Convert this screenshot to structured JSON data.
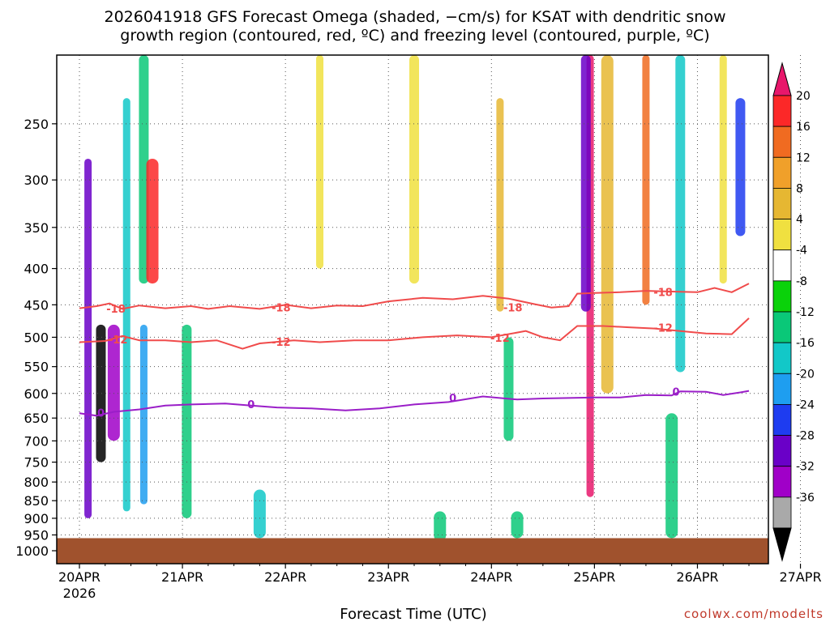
{
  "title": {
    "line1": "2026041918 GFS Forecast Omega (shaded, −cm/s) for KSAT with dendritic snow",
    "line2": "growth region (contoured, red, ºC) and freezing level (contoured, purple, ºC)"
  },
  "credit": "coolwx.com/modelts",
  "chart_data": {
    "type": "heatmap",
    "xlabel": "Forecast Time (UTC)",
    "ylabel": "",
    "x_ticks": [
      "20APR",
      "21APR",
      "22APR",
      "23APR",
      "24APR",
      "25APR",
      "26APR",
      "27APR"
    ],
    "x_sub_label": "2026",
    "x_range_hours": [
      0,
      156
    ],
    "y_scale": "log-pressure",
    "y_ticks": [
      250,
      300,
      350,
      400,
      450,
      500,
      550,
      600,
      650,
      700,
      750,
      800,
      850,
      900,
      950,
      1000
    ],
    "y_range_hPa": [
      200,
      1000
    ],
    "grid": true,
    "colorbar": {
      "unit": "-cm/s",
      "ticks": [
        "20",
        "16",
        "12",
        "8",
        "4",
        "-4",
        "-8",
        "-12",
        "-16",
        "-20",
        "-24",
        "-28",
        "-32",
        "-36"
      ],
      "colors": [
        "#e8176b",
        "#fc2828",
        "#f06b21",
        "#f0a02a",
        "#e6b732",
        "#f0e040",
        "#ffffff",
        "#0ad20a",
        "#0ac878",
        "#12c8c8",
        "#1e9ef0",
        "#1e3cf0",
        "#6a00c8",
        "#a000c8",
        "#a9a9a9",
        "#000000"
      ]
    },
    "series": [
      {
        "name": "-18",
        "color": "#f04b4b",
        "points": [
          [
            0,
            455
          ],
          [
            4,
            452
          ],
          [
            7,
            448
          ],
          [
            10,
            456
          ],
          [
            14,
            451
          ],
          [
            20,
            455
          ],
          [
            26,
            452
          ],
          [
            30,
            456
          ],
          [
            35,
            452
          ],
          [
            42,
            456
          ],
          [
            48,
            450
          ],
          [
            54,
            455
          ],
          [
            60,
            451
          ],
          [
            66,
            452
          ],
          [
            72,
            445
          ],
          [
            80,
            440
          ],
          [
            87,
            442
          ],
          [
            94,
            437
          ],
          [
            100,
            441
          ],
          [
            106,
            449
          ],
          [
            110,
            454
          ],
          [
            114,
            452
          ],
          [
            116,
            434
          ],
          [
            120,
            433
          ],
          [
            126,
            432
          ],
          [
            132,
            430
          ],
          [
            138,
            431
          ],
          [
            144,
            432
          ],
          [
            148,
            426
          ],
          [
            152,
            432
          ],
          [
            156,
            420
          ]
        ]
      },
      {
        "name": "-12",
        "color": "#f04b4b",
        "points": [
          [
            0,
            508
          ],
          [
            6,
            506
          ],
          [
            10,
            498
          ],
          [
            14,
            505
          ],
          [
            20,
            505
          ],
          [
            26,
            508
          ],
          [
            32,
            505
          ],
          [
            38,
            519
          ],
          [
            42,
            510
          ],
          [
            50,
            505
          ],
          [
            56,
            508
          ],
          [
            64,
            505
          ],
          [
            72,
            505
          ],
          [
            80,
            500
          ],
          [
            88,
            497
          ],
          [
            96,
            500
          ],
          [
            104,
            490
          ],
          [
            108,
            500
          ],
          [
            112,
            505
          ],
          [
            116,
            482
          ],
          [
            122,
            482
          ],
          [
            128,
            484
          ],
          [
            134,
            486
          ],
          [
            140,
            490
          ],
          [
            146,
            494
          ],
          [
            152,
            495
          ],
          [
            156,
            470
          ]
        ]
      },
      {
        "name": "0",
        "color": "#9a1ec8",
        "points": [
          [
            0,
            640
          ],
          [
            4,
            645
          ],
          [
            8,
            637
          ],
          [
            14,
            632
          ],
          [
            20,
            624
          ],
          [
            26,
            622
          ],
          [
            34,
            620
          ],
          [
            40,
            624
          ],
          [
            46,
            628
          ],
          [
            54,
            630
          ],
          [
            62,
            634
          ],
          [
            70,
            630
          ],
          [
            78,
            622
          ],
          [
            86,
            617
          ],
          [
            94,
            606
          ],
          [
            102,
            612
          ],
          [
            108,
            610
          ],
          [
            114,
            609
          ],
          [
            120,
            608
          ],
          [
            126,
            608
          ],
          [
            132,
            603
          ],
          [
            138,
            604
          ],
          [
            140,
            596
          ],
          [
            146,
            597
          ],
          [
            150,
            603
          ],
          [
            154,
            598
          ],
          [
            156,
            595
          ]
        ]
      }
    ],
    "contour_labels": [
      {
        "text": "-18",
        "x_hours": 8.5,
        "pressure": 457
      },
      {
        "text": "-18",
        "x_hours": 47,
        "pressure": 455
      },
      {
        "text": "-18",
        "x_hours": 101,
        "pressure": 455
      },
      {
        "text": "-18",
        "x_hours": 136,
        "pressure": 433
      },
      {
        "text": "-12",
        "x_hours": 9,
        "pressure": 505
      },
      {
        "text": "-12",
        "x_hours": 47,
        "pressure": 509
      },
      {
        "text": "-12",
        "x_hours": 98,
        "pressure": 502
      },
      {
        "text": "-12",
        "x_hours": 136,
        "pressure": 486
      },
      {
        "text": "0",
        "x_hours": 5,
        "pressure": 640
      },
      {
        "text": "0",
        "x_hours": 40,
        "pressure": 623
      },
      {
        "text": "0",
        "x_hours": 87,
        "pressure": 610
      },
      {
        "text": "0",
        "x_hours": 139,
        "pressure": 598
      }
    ],
    "omega_features": [
      {
        "x_hours": 2,
        "p_top": 280,
        "p_bottom": 900,
        "value": -24
      },
      {
        "x_hours": 5,
        "p_top": 480,
        "p_bottom": 750,
        "value": -36
      },
      {
        "x_hours": 8,
        "p_top": 480,
        "p_bottom": 700,
        "value": -28
      },
      {
        "x_hours": 11,
        "p_top": 230,
        "p_bottom": 880,
        "value": -12
      },
      {
        "x_hours": 15,
        "p_top": 200,
        "p_bottom": 420,
        "value": -8
      },
      {
        "x_hours": 17,
        "p_top": 280,
        "p_bottom": 420,
        "value": 16
      },
      {
        "x_hours": 15,
        "p_top": 480,
        "p_bottom": 860,
        "value": -16
      },
      {
        "x_hours": 25,
        "p_top": 480,
        "p_bottom": 900,
        "value": -8
      },
      {
        "x_hours": 42,
        "p_top": 820,
        "p_bottom": 960,
        "value": -12
      },
      {
        "x_hours": 56,
        "p_top": 200,
        "p_bottom": 400,
        "value": 4
      },
      {
        "x_hours": 78,
        "p_top": 200,
        "p_bottom": 420,
        "value": 4
      },
      {
        "x_hours": 84,
        "p_top": 880,
        "p_bottom": 970,
        "value": -8
      },
      {
        "x_hours": 98,
        "p_top": 230,
        "p_bottom": 460,
        "value": 8
      },
      {
        "x_hours": 100,
        "p_top": 500,
        "p_bottom": 700,
        "value": -8
      },
      {
        "x_hours": 102,
        "p_top": 880,
        "p_bottom": 960,
        "value": -8
      },
      {
        "x_hours": 119,
        "p_top": 200,
        "p_bottom": 840,
        "value": 20
      },
      {
        "x_hours": 118,
        "p_top": 200,
        "p_bottom": 460,
        "value": -24
      },
      {
        "x_hours": 123,
        "p_top": 200,
        "p_bottom": 600,
        "value": 8
      },
      {
        "x_hours": 132,
        "p_top": 200,
        "p_bottom": 450,
        "value": 12
      },
      {
        "x_hours": 140,
        "p_top": 200,
        "p_bottom": 560,
        "value": -12
      },
      {
        "x_hours": 138,
        "p_top": 640,
        "p_bottom": 960,
        "value": -8
      },
      {
        "x_hours": 150,
        "p_top": 200,
        "p_bottom": 420,
        "value": 4
      },
      {
        "x_hours": 154,
        "p_top": 230,
        "p_bottom": 360,
        "value": -20
      }
    ],
    "ground_color": "#a0522d"
  }
}
